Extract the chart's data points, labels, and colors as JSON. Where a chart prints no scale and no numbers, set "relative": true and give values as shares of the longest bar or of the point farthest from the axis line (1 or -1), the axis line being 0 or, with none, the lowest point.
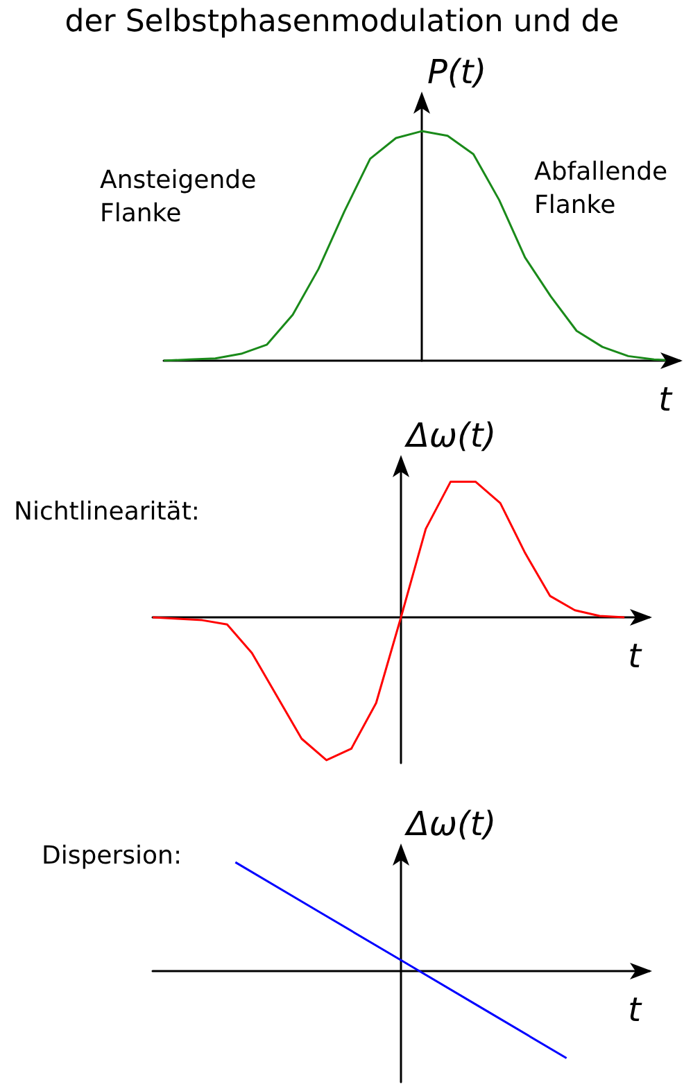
{
  "chart_data": [
    {
      "type": "line",
      "relative": true,
      "title": "der Selbstphasenmodulation und de",
      "ylabel": "P(t)",
      "xlabel": "t",
      "annotations": [
        "Ansteigende\nFlanke",
        "Abfallende\nFlanke"
      ],
      "categories": [
        null,
        null,
        null,
        null,
        null,
        null,
        null,
        null,
        null,
        null,
        null,
        null,
        null,
        null,
        null,
        null,
        null,
        null,
        null,
        null,
        null
      ],
      "marker": "none",
      "series": [
        {
          "color": "#1a8a1a",
          "values": [
            0,
            0.005,
            0.01,
            0.03,
            0.07,
            0.2,
            0.4,
            0.65,
            0.88,
            0.97,
            1,
            0.98,
            0.9,
            0.7,
            0.45,
            0.28,
            0.13,
            0.06,
            0.02,
            0.005,
            0
          ]
        }
      ]
    },
    {
      "type": "line",
      "relative": true,
      "ylabel": "Δω(t)",
      "xlabel": "t",
      "annotations": [
        "Nichtlinearität:"
      ],
      "categories": [
        null,
        null,
        null,
        null,
        null,
        null,
        null,
        null,
        null,
        null,
        null,
        null,
        null,
        null,
        null,
        null,
        null,
        null,
        null,
        null,
        null
      ],
      "marker": "none",
      "series": [
        {
          "color": "#ff0000",
          "values": [
            0,
            -0.01,
            -0.02,
            -0.05,
            -0.25,
            -0.55,
            -0.85,
            -1,
            -0.92,
            -0.6,
            0,
            0.62,
            0.95,
            0.95,
            0.8,
            0.45,
            0.15,
            0.05,
            0.01,
            0,
            null
          ]
        }
      ]
    },
    {
      "type": "line",
      "relative": true,
      "ylabel": "Δω(t)",
      "xlabel": "t",
      "annotations": [
        "Dispersion:"
      ],
      "categories": [
        null,
        null,
        null,
        null,
        null,
        null,
        null
      ],
      "marker": "none",
      "series": [
        {
          "color": "#0000ff",
          "values": [
            null,
            1,
            0.55,
            0.1,
            -0.35,
            -0.8,
            null
          ]
        }
      ]
    }
  ]
}
